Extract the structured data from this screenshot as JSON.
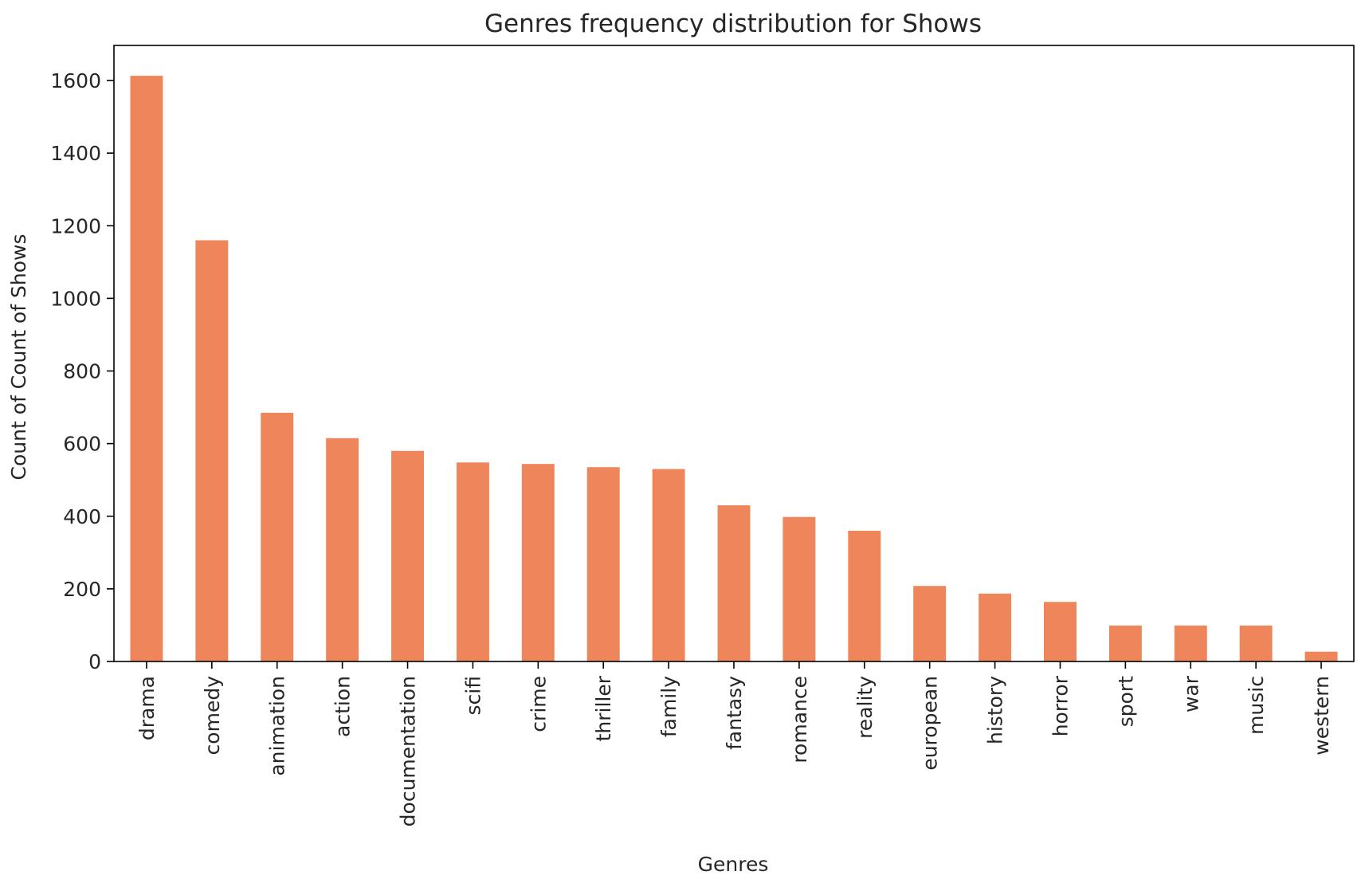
{
  "chart_data": {
    "type": "bar",
    "title": "Genres frequency distribution for Shows",
    "xlabel": "Genres",
    "ylabel": "Count of Count of Shows",
    "categories": [
      "drama",
      "comedy",
      "animation",
      "action",
      "documentation",
      "scifi",
      "crime",
      "thriller",
      "family",
      "fantasy",
      "romance",
      "reality",
      "european",
      "history",
      "horror",
      "sport",
      "war",
      "music",
      "western"
    ],
    "values": [
      1613,
      1160,
      685,
      615,
      580,
      548,
      544,
      535,
      530,
      430,
      398,
      360,
      208,
      187,
      164,
      99,
      99,
      99,
      27
    ],
    "ylim": [
      0,
      1700
    ],
    "yticks": [
      0,
      200,
      400,
      600,
      800,
      1000,
      1200,
      1400,
      1600
    ],
    "grid": false,
    "legend": "none",
    "colors": {
      "bar": "#EE855B",
      "axis": "#000000",
      "text": "#262626"
    }
  }
}
